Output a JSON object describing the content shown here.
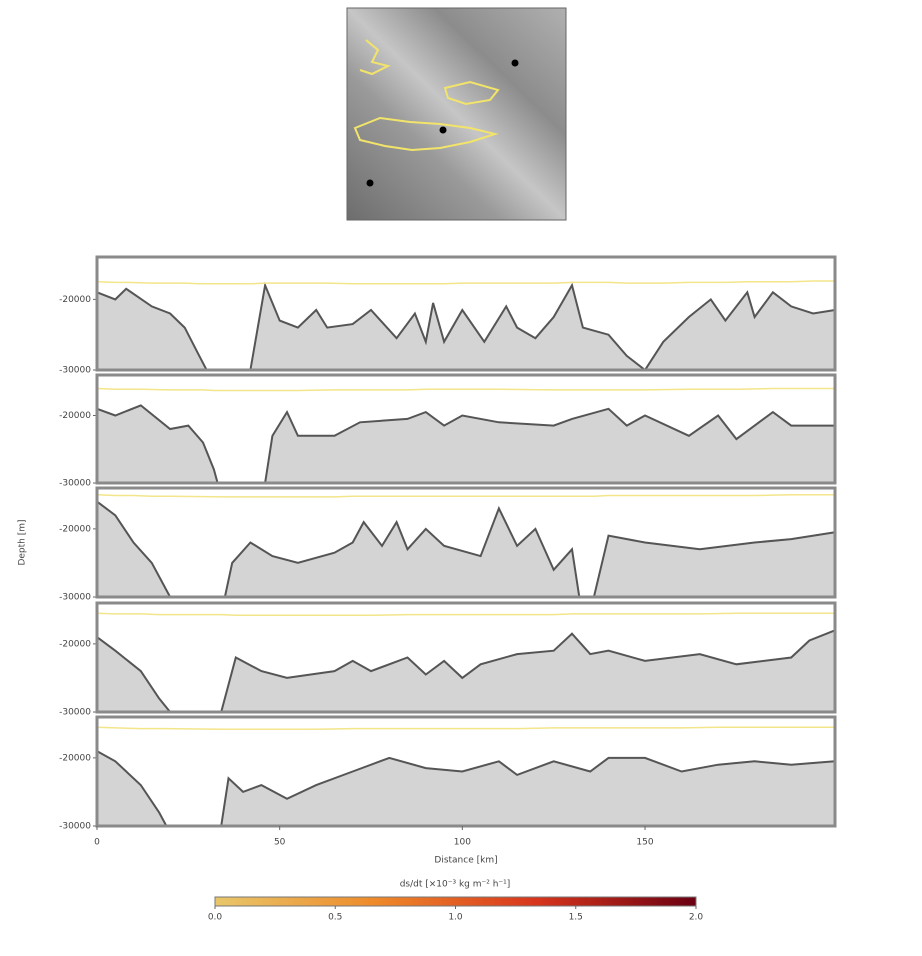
{
  "chart_data": [
    {
      "type": "area",
      "xlim": [
        0,
        202
      ],
      "ylim": [
        -30000,
        -14000
      ],
      "yticks": [
        -20000,
        -30000
      ],
      "x": [
        0,
        5,
        8,
        15,
        20,
        24,
        28,
        30,
        42,
        46,
        50,
        55,
        60,
        63,
        70,
        75,
        82,
        87,
        90,
        92,
        95,
        100,
        106,
        112,
        115,
        120,
        125,
        130,
        133,
        140,
        145,
        150,
        155,
        162,
        168,
        172,
        178,
        180,
        185,
        190,
        196,
        202
      ],
      "series": [
        {
          "color": "#555555",
          "fill": "#d4d4d4",
          "values": [
            -19000,
            -20000,
            -18500,
            -21000,
            -22000,
            -24000,
            -28000,
            -30000,
            -30000,
            -18000,
            -23000,
            -24000,
            -21500,
            -24000,
            -23500,
            -21500,
            -25500,
            -22000,
            -26000,
            -20500,
            -26000,
            -21500,
            -26000,
            -21000,
            -24000,
            -25500,
            -22500,
            -18000,
            -24000,
            -25000,
            -28000,
            -30000,
            -26000,
            -22500,
            -20000,
            -23000,
            -19000,
            -22500,
            -19000,
            -21000,
            -22000,
            -21500
          ]
        },
        {
          "color": "#f3e58a",
          "values": [
            -17500,
            -17600,
            -17600,
            -17700,
            -17700,
            -17700,
            -17800,
            -17800,
            -17800,
            -17700,
            -17700,
            -17700,
            -17700,
            -17700,
            -17800,
            -17800,
            -17800,
            -17800,
            -17800,
            -17800,
            -17800,
            -17700,
            -17700,
            -17700,
            -17700,
            -17700,
            -17700,
            -17600,
            -17600,
            -17600,
            -17700,
            -17700,
            -17700,
            -17600,
            -17600,
            -17600,
            -17500,
            -17500,
            -17500,
            -17500,
            -17400,
            -17400
          ]
        }
      ]
    },
    {
      "type": "area",
      "xlim": [
        0,
        202
      ],
      "ylim": [
        -30000,
        -14000
      ],
      "yticks": [
        -20000,
        -30000
      ],
      "x": [
        0,
        5,
        12,
        20,
        25,
        29,
        32,
        33,
        46,
        48,
        52,
        55,
        65,
        72,
        85,
        90,
        95,
        100,
        110,
        125,
        130,
        140,
        145,
        150,
        162,
        170,
        175,
        185,
        190,
        202
      ],
      "series": [
        {
          "color": "#555555",
          "fill": "#d4d4d4",
          "values": [
            -19000,
            -20000,
            -18500,
            -22000,
            -21500,
            -24000,
            -28000,
            -30000,
            -30000,
            -23000,
            -19500,
            -23000,
            -23000,
            -21000,
            -20500,
            -19500,
            -21500,
            -20000,
            -21000,
            -21500,
            -20500,
            -19000,
            -21500,
            -20000,
            -23000,
            -20000,
            -23500,
            -19500,
            -21500,
            -21500
          ]
        },
        {
          "color": "#f3e58a",
          "values": [
            -16000,
            -16100,
            -16100,
            -16200,
            -16200,
            -16200,
            -16300,
            -16300,
            -16300,
            -16300,
            -16300,
            -16300,
            -16200,
            -16200,
            -16200,
            -16100,
            -16100,
            -16100,
            -16100,
            -16200,
            -16200,
            -16200,
            -16200,
            -16200,
            -16100,
            -16100,
            -16100,
            -16000,
            -16000,
            -16000
          ]
        }
      ]
    },
    {
      "type": "area",
      "xlim": [
        0,
        202
      ],
      "ylim": [
        -30000,
        -14000
      ],
      "yticks": [
        -20000,
        -30000
      ],
      "ylabel": "Depth [m]",
      "x": [
        0,
        5,
        10,
        15,
        18,
        20,
        35,
        37,
        42,
        48,
        55,
        65,
        70,
        73,
        78,
        82,
        85,
        90,
        95,
        105,
        110,
        115,
        120,
        125,
        130,
        132,
        136,
        140,
        150,
        165,
        180,
        190,
        202
      ],
      "series": [
        {
          "color": "#555555",
          "fill": "#d4d4d4",
          "values": [
            -16000,
            -18000,
            -22000,
            -25000,
            -28000,
            -30000,
            -30000,
            -25000,
            -22000,
            -24000,
            -25000,
            -23500,
            -22000,
            -19000,
            -22500,
            -19000,
            -23000,
            -20000,
            -22500,
            -24000,
            -17000,
            -22500,
            -20000,
            -26000,
            -23000,
            -30000,
            -30000,
            -21000,
            -22000,
            -23000,
            -22000,
            -21500,
            -20500
          ]
        },
        {
          "color": "#f3e58a",
          "values": [
            -15000,
            -15100,
            -15100,
            -15200,
            -15200,
            -15200,
            -15300,
            -15300,
            -15300,
            -15300,
            -15300,
            -15300,
            -15200,
            -15200,
            -15200,
            -15200,
            -15200,
            -15200,
            -15200,
            -15200,
            -15200,
            -15200,
            -15200,
            -15200,
            -15200,
            -15200,
            -15200,
            -15100,
            -15100,
            -15100,
            -15100,
            -15000,
            -15000
          ]
        }
      ]
    },
    {
      "type": "area",
      "xlim": [
        0,
        202
      ],
      "ylim": [
        -30000,
        -14000
      ],
      "yticks": [
        -20000,
        -30000
      ],
      "x": [
        0,
        5,
        12,
        17,
        20,
        34,
        38,
        45,
        52,
        65,
        70,
        75,
        85,
        90,
        95,
        100,
        105,
        115,
        125,
        130,
        135,
        140,
        150,
        165,
        175,
        190,
        195,
        202
      ],
      "series": [
        {
          "color": "#555555",
          "fill": "#d4d4d4",
          "values": [
            -19000,
            -21000,
            -24000,
            -28000,
            -30000,
            -30000,
            -22000,
            -24000,
            -25000,
            -24000,
            -22500,
            -24000,
            -22000,
            -24500,
            -22500,
            -25000,
            -23000,
            -21500,
            -21000,
            -18500,
            -21500,
            -21000,
            -22500,
            -21500,
            -23000,
            -22000,
            -19500,
            -18000
          ]
        },
        {
          "color": "#f3e58a",
          "values": [
            -15500,
            -15600,
            -15600,
            -15700,
            -15700,
            -15700,
            -15800,
            -15800,
            -15800,
            -15800,
            -15800,
            -15800,
            -15700,
            -15700,
            -15700,
            -15700,
            -15700,
            -15700,
            -15700,
            -15600,
            -15600,
            -15600,
            -15600,
            -15600,
            -15500,
            -15500,
            -15500,
            -15500
          ]
        }
      ]
    },
    {
      "type": "area",
      "xlim": [
        0,
        202
      ],
      "ylim": [
        -30000,
        -14000
      ],
      "yticks": [
        -20000,
        -30000
      ],
      "xticks": [
        0,
        50,
        100,
        150
      ],
      "xlabel": "Distance [km]",
      "x": [
        0,
        5,
        12,
        17,
        19,
        34,
        36,
        40,
        45,
        52,
        60,
        70,
        80,
        90,
        100,
        110,
        115,
        125,
        135,
        140,
        150,
        160,
        170,
        180,
        190,
        202
      ],
      "series": [
        {
          "color": "#555555",
          "fill": "#d4d4d4",
          "values": [
            -19000,
            -20500,
            -24000,
            -28000,
            -30000,
            -30000,
            -23000,
            -25000,
            -24000,
            -26000,
            -24000,
            -22000,
            -20000,
            -21500,
            -22000,
            -20500,
            -22500,
            -20500,
            -22000,
            -20000,
            -20000,
            -22000,
            -21000,
            -20500,
            -21000,
            -20500
          ]
        },
        {
          "color": "#f3e58a",
          "values": [
            -15500,
            -15600,
            -15700,
            -15700,
            -15700,
            -15800,
            -15800,
            -15800,
            -15800,
            -15800,
            -15800,
            -15700,
            -15700,
            -15700,
            -15700,
            -15700,
            -15700,
            -15600,
            -15600,
            -15600,
            -15600,
            -15600,
            -15500,
            -15500,
            -15500,
            -15500
          ]
        }
      ]
    }
  ],
  "colorbar": {
    "label": "ds/dt [×10⁻³ kg m⁻² h⁻¹]",
    "lim": [
      0,
      2
    ],
    "ticks": [
      {
        "value": 0,
        "label": "0.0"
      },
      {
        "value": 0.5,
        "label": "0.5"
      },
      {
        "value": 1,
        "label": "1.0"
      },
      {
        "value": 1.5,
        "label": "1.5"
      },
      {
        "value": 2,
        "label": "2.0"
      }
    ],
    "colors": [
      "#e8c76a",
      "#ee8a2a",
      "#d8351c",
      "#6a0012"
    ]
  }
}
